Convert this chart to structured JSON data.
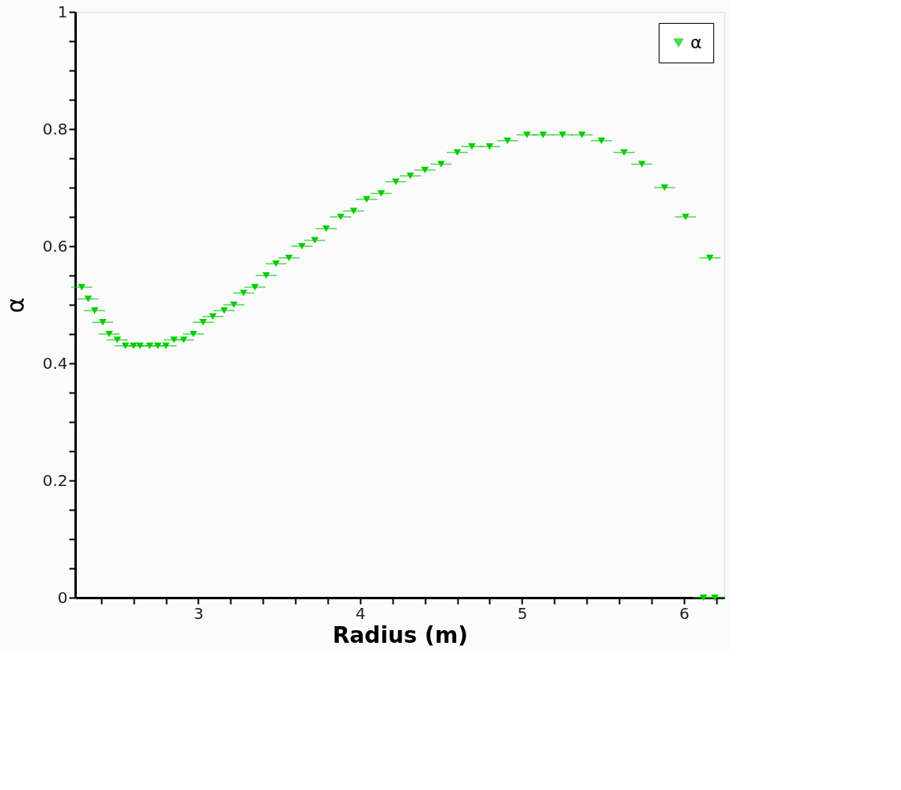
{
  "chart_data": {
    "type": "scatter",
    "xlabel": "Radius (m)",
    "ylabel": "α",
    "x": [
      2.28,
      2.32,
      2.36,
      2.41,
      2.45,
      2.5,
      2.55,
      2.6,
      2.64,
      2.7,
      2.75,
      2.8,
      2.85,
      2.91,
      2.97,
      3.03,
      3.09,
      3.16,
      3.22,
      3.28,
      3.35,
      3.42,
      3.48,
      3.56,
      3.64,
      3.72,
      3.79,
      3.88,
      3.96,
      4.04,
      4.13,
      4.22,
      4.31,
      4.4,
      4.5,
      4.6,
      4.69,
      4.8,
      4.91,
      5.03,
      5.13,
      5.25,
      5.37,
      5.49,
      5.63,
      5.74,
      5.88,
      6.01,
      6.16,
      6.12,
      6.19
    ],
    "series": [
      {
        "name": "α",
        "color": "#00cc00",
        "marker": "triangle",
        "values": [
          0.53,
          0.51,
          0.49,
          0.47,
          0.45,
          0.44,
          0.43,
          0.43,
          0.43,
          0.43,
          0.43,
          0.43,
          0.44,
          0.44,
          0.45,
          0.47,
          0.48,
          0.49,
          0.5,
          0.52,
          0.53,
          0.55,
          0.57,
          0.58,
          0.6,
          0.61,
          0.63,
          0.65,
          0.66,
          0.68,
          0.69,
          0.71,
          0.72,
          0.73,
          0.74,
          0.76,
          0.77,
          0.77,
          0.78,
          0.79,
          0.79,
          0.79,
          0.79,
          0.78,
          0.76,
          0.74,
          0.7,
          0.65,
          0.58,
          0.0,
          0.0
        ],
        "xerrors": [
          0.065,
          0.065,
          0.065,
          0.065,
          0.065,
          0.065,
          0.065,
          0.065,
          0.065,
          0.065,
          0.065,
          0.065,
          0.065,
          0.065,
          0.065,
          0.065,
          0.065,
          0.065,
          0.065,
          0.065,
          0.065,
          0.065,
          0.065,
          0.065,
          0.065,
          0.065,
          0.065,
          0.065,
          0.065,
          0.065,
          0.065,
          0.065,
          0.065,
          0.065,
          0.065,
          0.065,
          0.065,
          0.065,
          0.065,
          0.065,
          0.065,
          0.065,
          0.065,
          0.065,
          0.065,
          0.065,
          0.065,
          0.065,
          0.065,
          0.065,
          0.065
        ]
      }
    ],
    "xlim": [
      2.24,
      6.25
    ],
    "xticks": [
      {
        "value": 2.4,
        "label": null
      },
      {
        "value": 2.6,
        "label": null
      },
      {
        "value": 2.8,
        "label": null
      },
      3,
      {
        "value": 3.2,
        "label": null
      },
      {
        "value": 3.4,
        "label": null
      },
      {
        "value": 3.6,
        "label": null
      },
      {
        "value": 3.8,
        "label": null
      },
      4,
      {
        "value": 4.2,
        "label": null
      },
      {
        "value": 4.4,
        "label": null
      },
      {
        "value": 4.6,
        "label": null
      },
      {
        "value": 4.8,
        "label": null
      },
      5,
      {
        "value": 5.2,
        "label": null
      },
      {
        "value": 5.4,
        "label": null
      },
      {
        "value": 5.6,
        "label": null
      },
      {
        "value": 5.8,
        "label": null
      },
      6,
      {
        "value": 6.2,
        "label": null
      }
    ],
    "ylim": [
      0,
      1
    ],
    "yticks": [
      0,
      {
        "value": 0.05,
        "label": null
      },
      {
        "value": 0.1,
        "label": null
      },
      {
        "value": 0.15,
        "label": null
      },
      0.2,
      {
        "value": 0.25,
        "label": null
      },
      {
        "value": 0.3,
        "label": null
      },
      {
        "value": 0.35,
        "label": null
      },
      0.4,
      {
        "value": 0.45,
        "label": null
      },
      {
        "value": 0.5,
        "label": null
      },
      {
        "value": 0.55,
        "label": null
      },
      0.6,
      {
        "value": 0.65,
        "label": null
      },
      {
        "value": 0.7,
        "label": null
      },
      {
        "value": 0.75,
        "label": null
      },
      0.8,
      {
        "value": 0.85,
        "label": null
      },
      {
        "value": 0.9,
        "label": null
      },
      {
        "value": 0.95,
        "label": null
      },
      1
    ],
    "legend": "top right",
    "grid": false
  }
}
